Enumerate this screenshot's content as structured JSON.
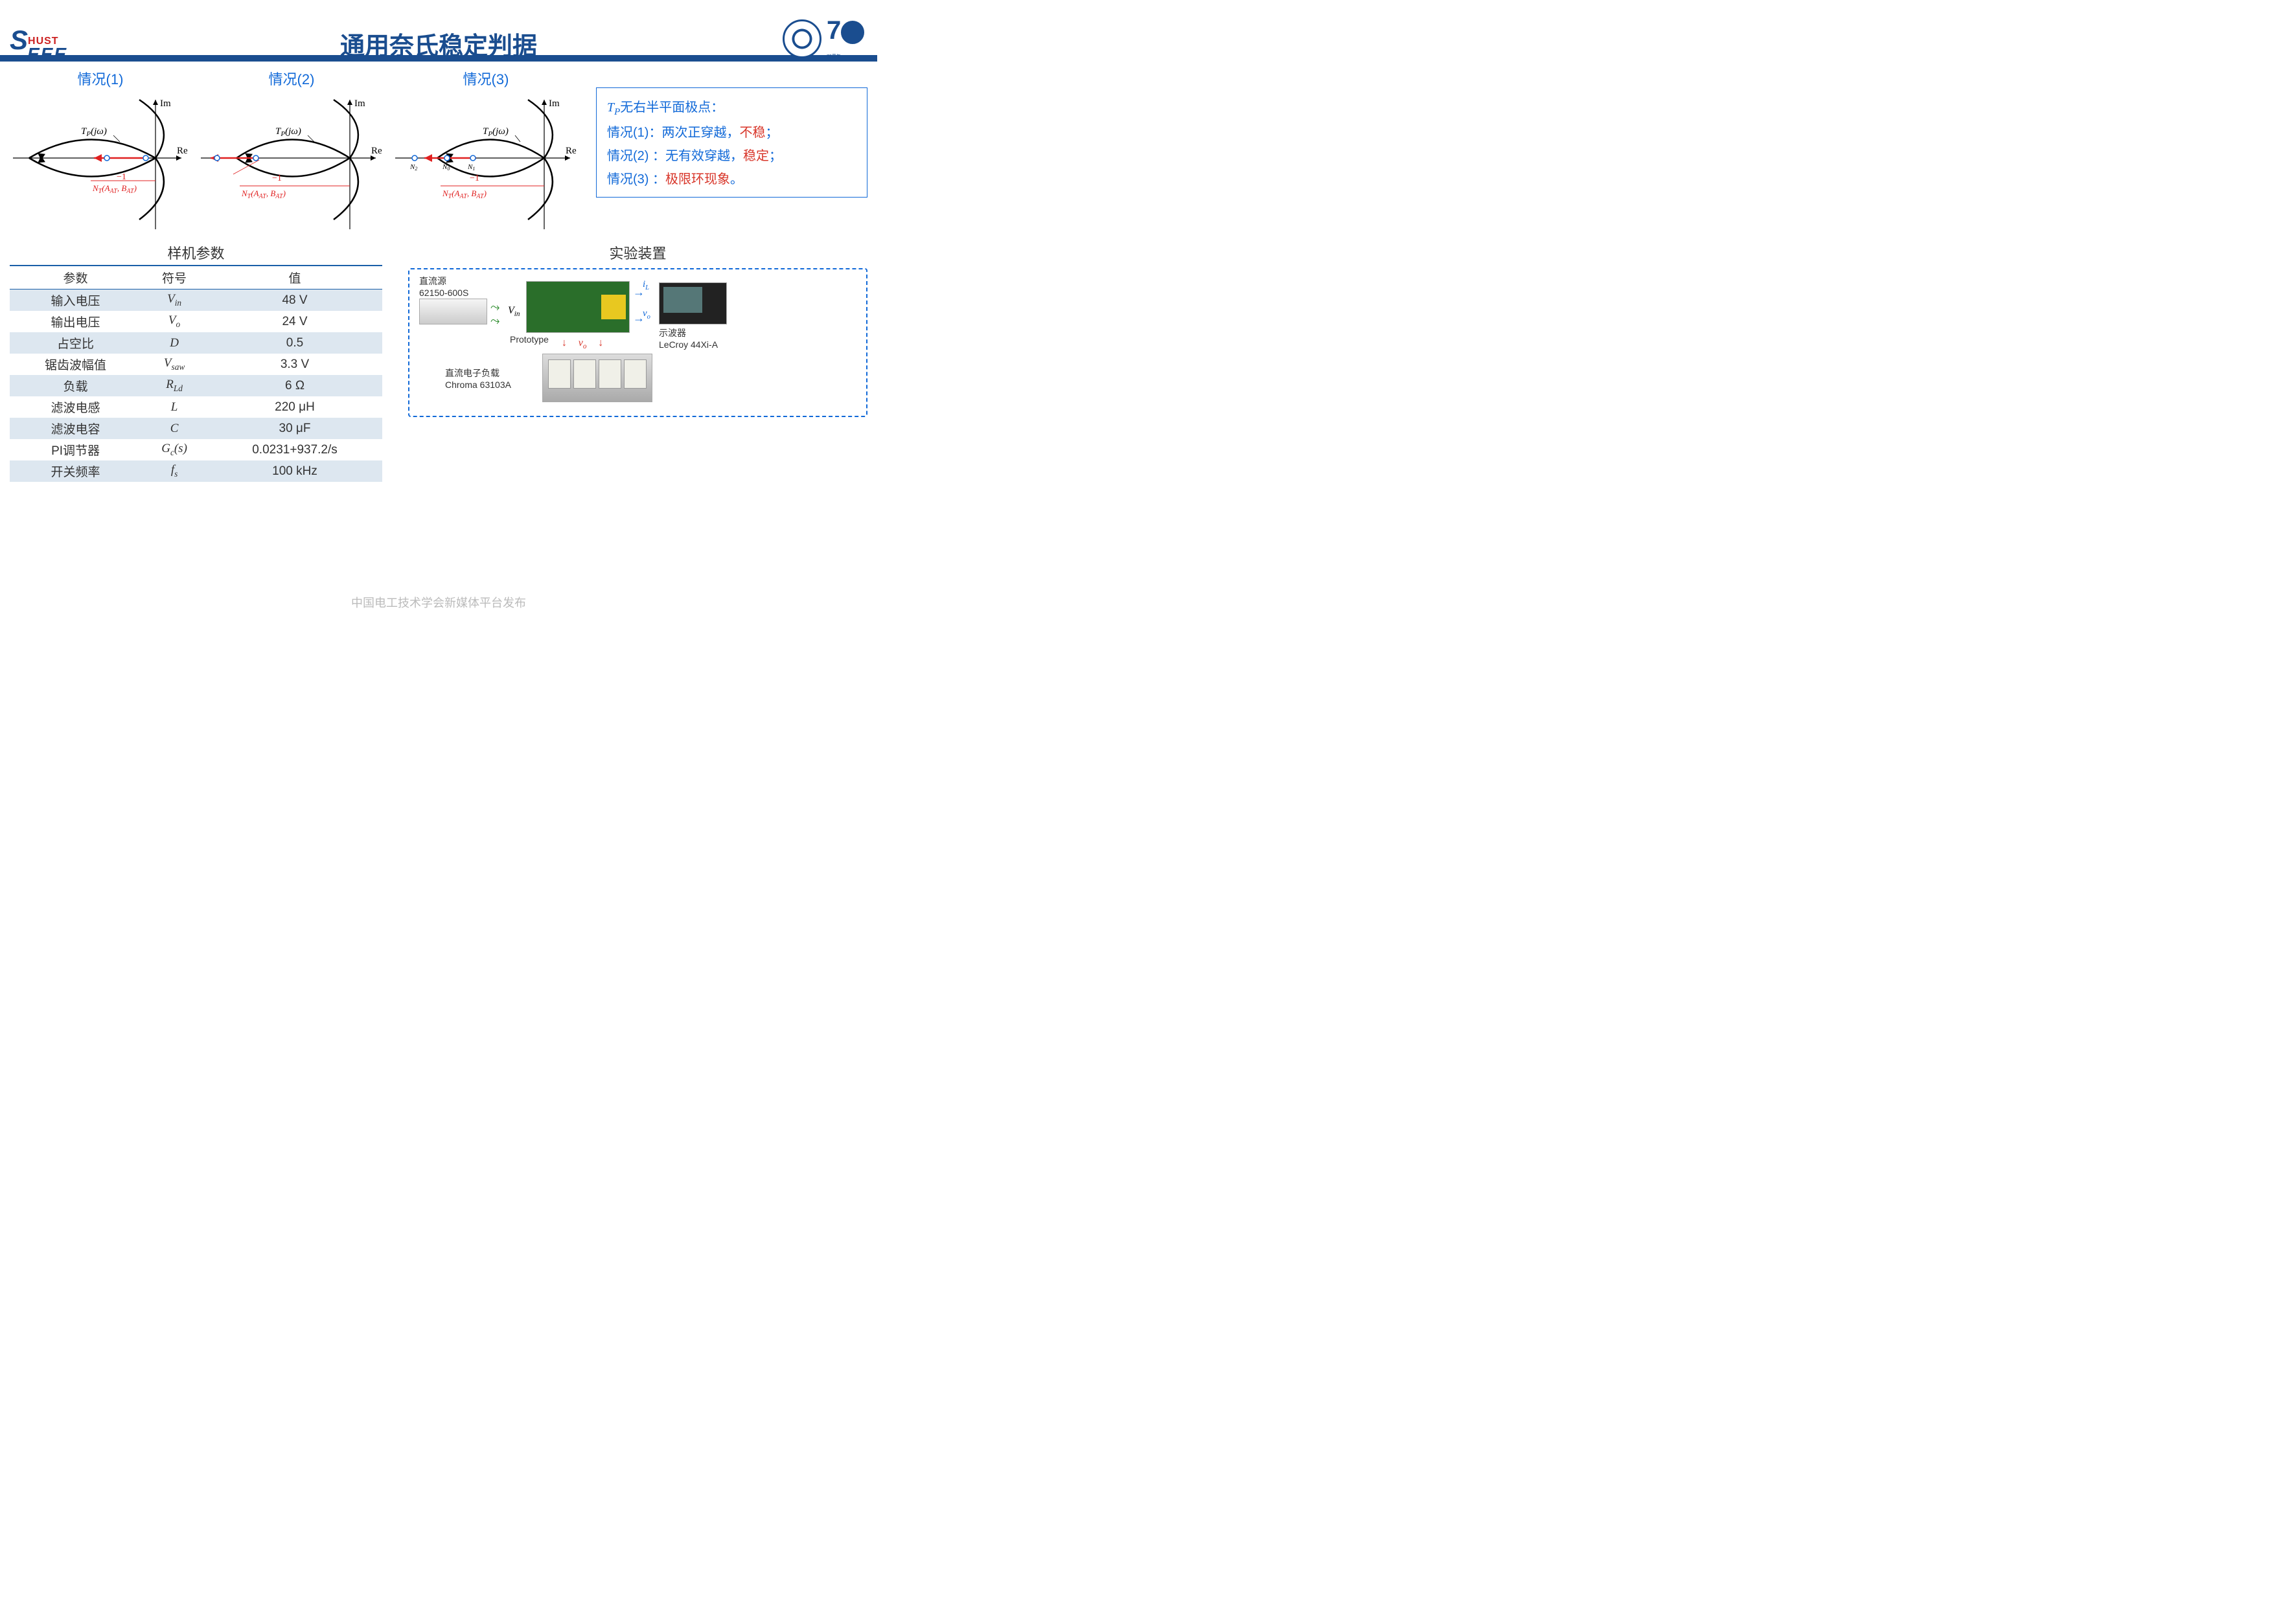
{
  "header": {
    "title": "通用奈氏稳定判据",
    "logo_hust": "HUST",
    "logo_eee": "EEE"
  },
  "diagrams": {
    "case1": {
      "label": "情况(1)",
      "tp_label": "Tₚ(jω)",
      "im": "Im",
      "re": "Re",
      "nt": "N_T(A_AT, B_AT)",
      "neg1": "−1"
    },
    "case2": {
      "label": "情况(2)",
      "tp_label": "Tₚ(jω)",
      "im": "Im",
      "re": "Re",
      "nt": "N_T(A_AT, B_AT)",
      "neg1": "−1"
    },
    "case3": {
      "label": "情况(3)",
      "tp_label": "Tₚ(jω)",
      "im": "Im",
      "re": "Re",
      "nt": "N_T(A_AT, B_AT)",
      "neg1": "−1",
      "n0": "N₀",
      "n1": "N₁",
      "n2": "N₂"
    }
  },
  "legend": {
    "line1_a": "T",
    "line1_b": "P",
    "line1_c": "无右半平面极点：",
    "line2": "情况(1)：两次正穿越，",
    "line2_r": "不稳",
    "line2_e": "；",
    "line3": "情况(2) ：无有效穿越，",
    "line3_r": "稳定",
    "line3_e": "；",
    "line4": "情况(3) ：",
    "line4_r": "极限环现象",
    "line4_e": "。"
  },
  "table": {
    "title": "样机参数",
    "headers": [
      "参数",
      "符号",
      "值"
    ],
    "rows": [
      {
        "p": "输入电压",
        "s": "V",
        "sub": "in",
        "v": "48 V",
        "alt": true
      },
      {
        "p": "输出电压",
        "s": "V",
        "sub": "o",
        "v": "24 V",
        "alt": false
      },
      {
        "p": "占空比",
        "s": "D",
        "sub": "",
        "v": "0.5",
        "alt": true
      },
      {
        "p": "锯齿波幅值",
        "s": "V",
        "sub": "saw",
        "v": "3.3 V",
        "alt": false
      },
      {
        "p": "负载",
        "s": "R",
        "sub": "Ld",
        "v": "6 Ω",
        "alt": true
      },
      {
        "p": "滤波电感",
        "s": "L",
        "sub": "",
        "v": "220 μH",
        "alt": false
      },
      {
        "p": "滤波电容",
        "s": "C",
        "sub": "",
        "v": "30 μF",
        "alt": true
      },
      {
        "p": "PI调节器",
        "s": "G",
        "sub": "c",
        "sfx": "(s)",
        "v": "0.0231+937.2/s",
        "alt": false
      },
      {
        "p": "开关频率",
        "s": "f",
        "sub": "s",
        "v": "100 kHz",
        "alt": true
      }
    ]
  },
  "experiment": {
    "title": "实验装置",
    "dc_source": "直流源",
    "dc_source_model": "62150-600S",
    "prototype": "Prototype",
    "vin": "V",
    "vin_sub": "in",
    "il": "i",
    "il_sub": "L",
    "vo": "v",
    "vo_sub": "o",
    "scope": "示波器",
    "scope_model": "LeCroy 44Xi-A",
    "load": "直流电子负载",
    "load_model": "Chroma 63103A"
  },
  "footer": "中国电工技术学会新媒体平台发布",
  "colors": {
    "primary": "#1a4d8f",
    "link": "#1169d8",
    "accent_red": "#d8362a",
    "table_alt": "#dde7f0",
    "diagram_stroke": "#000000",
    "diagram_red": "#e02020"
  }
}
